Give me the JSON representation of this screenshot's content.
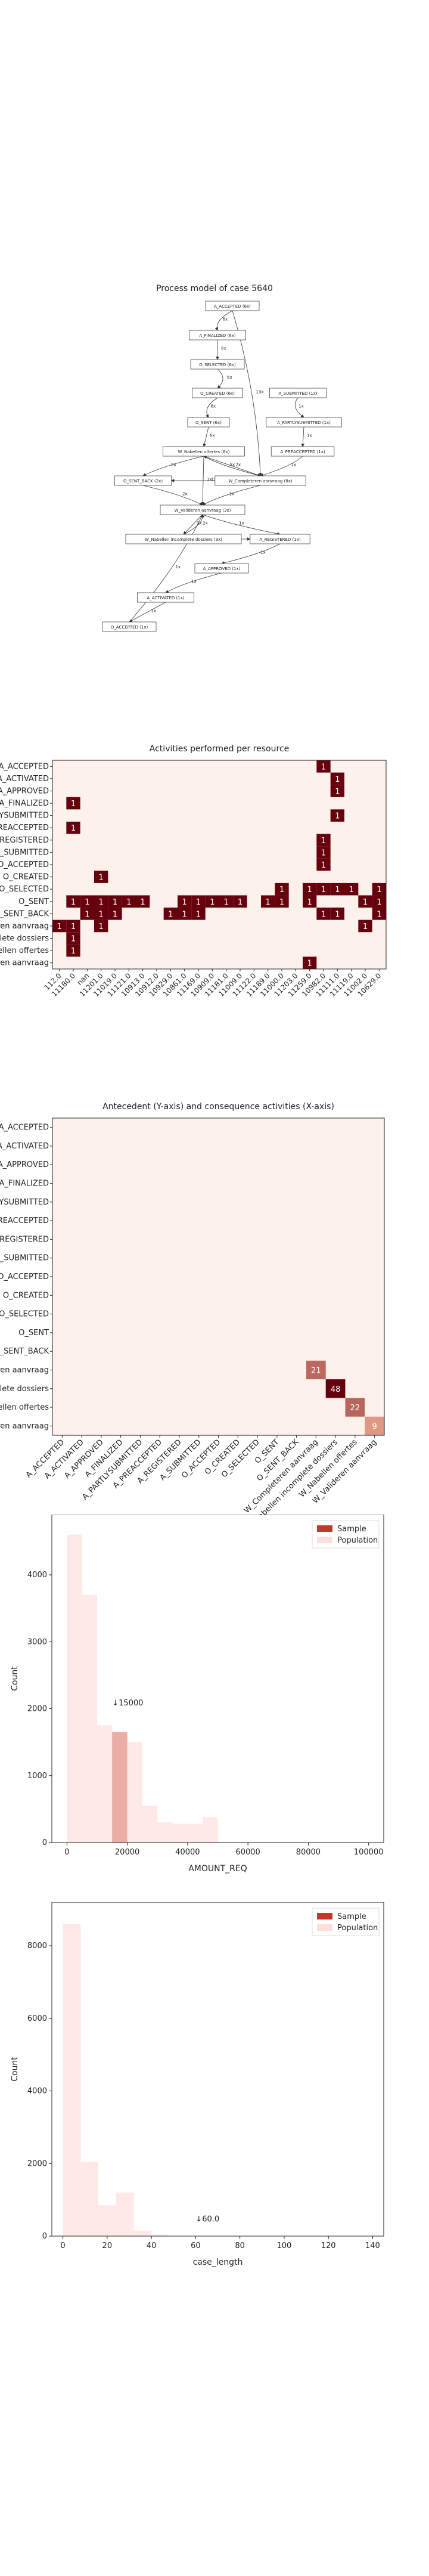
{
  "process_model": {
    "title": "Process model of case 5640",
    "nodes": [
      {
        "id": "accepted_top",
        "label": "A_ACCEPTED (6x)"
      },
      {
        "id": "finalized",
        "label": "A_FINALIZED (6x)"
      },
      {
        "id": "o_selected",
        "label": "O_SELECTED (6x)"
      },
      {
        "id": "o_created",
        "label": "O_CREATED (6x)"
      },
      {
        "id": "o_sent",
        "label": "O_SENT (6x)"
      },
      {
        "id": "a_submitted",
        "label": "A_SUBMITTED (1x)"
      },
      {
        "id": "a_partly",
        "label": "A_PARTLYSUBMITTED (1x)"
      },
      {
        "id": "a_preaccepted",
        "label": "A_PREACCEPTED (1x)"
      },
      {
        "id": "w_nabellen_offertes",
        "label": "W_Nabellen offertes (6x)"
      },
      {
        "id": "w_completeren",
        "label": "W_Completeren aanvraag (8x)"
      },
      {
        "id": "o_sent_back",
        "label": "O_SENT_BACK (2x)"
      },
      {
        "id": "w_valideren",
        "label": "W_Valideren aanvraag (3x)"
      },
      {
        "id": "w_nabellen_incompleet",
        "label": "W_Nabellen incomplete dossiers (3x)"
      },
      {
        "id": "a_registered",
        "label": "A_REGISTERED (1x)"
      },
      {
        "id": "a_approved",
        "label": "A_APPROVED (1x)"
      },
      {
        "id": "a_activated",
        "label": "A_ACTIVATED (1x)"
      },
      {
        "id": "o_accepted",
        "label": "O_ACCEPTED (1x)"
      }
    ],
    "edges": [
      {
        "from": "accepted_top",
        "to": "finalized",
        "label": "6x"
      },
      {
        "from": "finalized",
        "to": "o_selected",
        "label": "6x"
      },
      {
        "from": "o_selected",
        "to": "o_created",
        "label": "6x"
      },
      {
        "from": "o_created",
        "to": "o_sent",
        "label": "6x"
      },
      {
        "from": "o_sent",
        "to": "w_nabellen_offertes",
        "label": "6x"
      },
      {
        "from": "accepted_top",
        "to": "w_completeren",
        "label": "13x"
      },
      {
        "from": "a_submitted",
        "to": "a_partly",
        "label": "1x"
      },
      {
        "from": "a_partly",
        "to": "a_preaccepted",
        "label": "1x"
      },
      {
        "from": "a_preaccepted",
        "to": "w_completeren",
        "label": "1x"
      },
      {
        "from": "w_nabellen_offertes",
        "to": "w_completeren",
        "label": "5x"
      },
      {
        "from": "w_completeren",
        "to": "w_nabellen_offertes",
        "label": "2x"
      },
      {
        "from": "w_completeren",
        "to": "o_sent_back",
        "label": "1x"
      },
      {
        "from": "w_nabellen_offertes",
        "to": "o_sent_back",
        "label": "2x"
      },
      {
        "from": "w_nabellen_offertes",
        "to": "w_valideren",
        "label": "1x"
      },
      {
        "from": "o_sent_back",
        "to": "w_valideren",
        "label": "2x"
      },
      {
        "from": "w_completeren",
        "to": "w_valideren",
        "label": "1x"
      },
      {
        "from": "w_valideren",
        "to": "w_nabellen_incompleet",
        "label": "3x"
      },
      {
        "from": "w_nabellen_incompleet",
        "to": "w_valideren",
        "label": "2x"
      },
      {
        "from": "w_valideren",
        "to": "a_registered",
        "label": "1x"
      },
      {
        "from": "w_nabellen_incompleet",
        "to": "a_registered",
        "label": "1x"
      },
      {
        "from": "a_registered",
        "to": "a_approved",
        "label": "1x"
      },
      {
        "from": "a_approved",
        "to": "a_activated",
        "label": "1x"
      },
      {
        "from": "a_activated",
        "to": "o_accepted",
        "label": "1x"
      },
      {
        "from": "o_accepted",
        "to": "w_valideren",
        "label": "1x"
      }
    ]
  },
  "chart_data": [
    {
      "type": "heatmap",
      "title": "Activities performed per resource",
      "rows": [
        "A_ACCEPTED",
        "A_ACTIVATED",
        "A_APPROVED",
        "A_FINALIZED",
        "A_PARTLYSUBMITTED",
        "A_PREACCEPTED",
        "A_REGISTERED",
        "A_SUBMITTED",
        "O_ACCEPTED",
        "O_CREATED",
        "O_SELECTED",
        "O_SENT",
        "O_SENT_BACK",
        "W_Completeren aanvraag",
        "W_Nabellen incomplete dossiers",
        "W_Nabellen offertes",
        "W_Valideren aanvraag"
      ],
      "columns": [
        "112.0",
        "11180.0",
        "nan",
        "11201.0",
        "11019.0",
        "11121.0",
        "10913.0",
        "10912.0",
        "10929.0",
        "10861.0",
        "11169.0",
        "10909.0",
        "11181.0",
        "11009.0",
        "11122.0",
        "11189.0",
        "11000.0",
        "11203.0",
        "11259.0",
        "10982.0",
        "11111.0",
        "11119.0",
        "11002.0",
        "10629.0"
      ],
      "values": [
        [
          0,
          0,
          0,
          0,
          0,
          0,
          0,
          0,
          0,
          0,
          0,
          0,
          0,
          0,
          0,
          0,
          0,
          0,
          0,
          1,
          0,
          0,
          0,
          0
        ],
        [
          0,
          0,
          0,
          0,
          0,
          0,
          0,
          0,
          0,
          0,
          0,
          0,
          0,
          0,
          0,
          0,
          0,
          0,
          0,
          0,
          1,
          0,
          0,
          0
        ],
        [
          0,
          0,
          0,
          0,
          0,
          0,
          0,
          0,
          0,
          0,
          0,
          0,
          0,
          0,
          0,
          0,
          0,
          0,
          0,
          0,
          1,
          0,
          0,
          0
        ],
        [
          0,
          1,
          0,
          0,
          0,
          0,
          0,
          0,
          0,
          0,
          0,
          0,
          0,
          0,
          0,
          0,
          0,
          0,
          0,
          0,
          0,
          0,
          0,
          0
        ],
        [
          0,
          0,
          0,
          0,
          0,
          0,
          0,
          0,
          0,
          0,
          0,
          0,
          0,
          0,
          0,
          0,
          0,
          0,
          0,
          0,
          1,
          0,
          0,
          0
        ],
        [
          0,
          1,
          0,
          0,
          0,
          0,
          0,
          0,
          0,
          0,
          0,
          0,
          0,
          0,
          0,
          0,
          0,
          0,
          0,
          0,
          0,
          0,
          0,
          0
        ],
        [
          0,
          0,
          0,
          0,
          0,
          0,
          0,
          0,
          0,
          0,
          0,
          0,
          0,
          0,
          0,
          0,
          0,
          0,
          0,
          1,
          0,
          0,
          0,
          0
        ],
        [
          0,
          0,
          0,
          0,
          0,
          0,
          0,
          0,
          0,
          0,
          0,
          0,
          0,
          0,
          0,
          0,
          0,
          0,
          0,
          1,
          0,
          0,
          0,
          0
        ],
        [
          0,
          0,
          0,
          0,
          0,
          0,
          0,
          0,
          0,
          0,
          0,
          0,
          0,
          0,
          0,
          0,
          0,
          0,
          0,
          1,
          0,
          0,
          0,
          0
        ],
        [
          0,
          0,
          0,
          1,
          0,
          0,
          0,
          0,
          0,
          0,
          0,
          0,
          0,
          0,
          0,
          0,
          0,
          0,
          0,
          0,
          0,
          0,
          0,
          0
        ],
        [
          0,
          0,
          0,
          0,
          0,
          0,
          0,
          0,
          0,
          0,
          0,
          0,
          0,
          0,
          0,
          0,
          1,
          0,
          1,
          1,
          1,
          1,
          0,
          1
        ],
        [
          0,
          1,
          1,
          1,
          1,
          1,
          1,
          0,
          0,
          1,
          1,
          1,
          1,
          1,
          0,
          1,
          1,
          0,
          1,
          0,
          0,
          0,
          1,
          1
        ],
        [
          0,
          0,
          1,
          1,
          1,
          0,
          0,
          0,
          1,
          1,
          1,
          0,
          0,
          0,
          0,
          0,
          0,
          0,
          0,
          1,
          1,
          0,
          0,
          1
        ],
        [
          1,
          1,
          0,
          1,
          0,
          0,
          0,
          0,
          0,
          0,
          0,
          0,
          0,
          0,
          0,
          0,
          0,
          0,
          0,
          0,
          0,
          0,
          1,
          0
        ],
        [
          0,
          1,
          0,
          0,
          0,
          0,
          0,
          0,
          0,
          0,
          0,
          0,
          0,
          0,
          0,
          0,
          0,
          0,
          0,
          0,
          0,
          0,
          0,
          0
        ],
        [
          0,
          1,
          0,
          0,
          0,
          0,
          0,
          0,
          0,
          0,
          0,
          0,
          0,
          0,
          0,
          0,
          0,
          0,
          0,
          0,
          0,
          0,
          0,
          0
        ],
        [
          0,
          0,
          0,
          0,
          0,
          0,
          0,
          0,
          0,
          0,
          0,
          0,
          0,
          0,
          0,
          0,
          0,
          0,
          1,
          0,
          0,
          0,
          0,
          0
        ]
      ],
      "row_label_overrides": {
        "4": "A_PARTLYSUBMITTED",
        "13": "W_Completeren aanvraag",
        "14": "W_Nabellen incomplete dossiers",
        "15": "W_Nabellen offertes",
        "16": "W_Valideren aanvraag"
      },
      "colors": {
        "low": "#fdf1ec",
        "high": "#67000d"
      }
    },
    {
      "type": "heatmap",
      "title": "Antecedent (Y-axis) and consequence activities (X-axis)",
      "labels": [
        "A_ACCEPTED",
        "A_ACTIVATED",
        "A_APPROVED",
        "A_FINALIZED",
        "A_PARTLYSUBMITTED",
        "A_PREACCEPTED",
        "A_REGISTERED",
        "A_SUBMITTED",
        "O_ACCEPTED",
        "O_CREATED",
        "O_SELECTED",
        "O_SENT",
        "O_SENT_BACK",
        "W_Completeren aanvraag",
        "W_Nabellen incomplete dossiers",
        "W_Nabellen offertes",
        "W_Valideren aanvraag"
      ],
      "annotated_cells": [
        {
          "row": 13,
          "col": 13,
          "value": 21
        },
        {
          "row": 14,
          "col": 14,
          "value": 48
        },
        {
          "row": 15,
          "col": 15,
          "value": 22
        },
        {
          "row": 16,
          "col": 16,
          "value": 9
        }
      ],
      "colors": {
        "low": "#fdf1ec",
        "high": "#67000d"
      }
    },
    {
      "type": "bar",
      "xlabel": "AMOUNT_REQ",
      "ylabel": "Count",
      "xlim": [
        -5000,
        105000
      ],
      "ylim": [
        0,
        4900
      ],
      "xticks": [
        "0",
        "20000",
        "40000",
        "60000",
        "80000",
        "100000"
      ],
      "yticks": [
        "0",
        "1000",
        "2000",
        "3000",
        "4000"
      ],
      "bin_width": 5000,
      "series": [
        {
          "name": "Sample",
          "bins": [
            [
              15000,
              20000,
              1650
            ]
          ],
          "color": "#c0392b"
        },
        {
          "name": "Population",
          "bins": [
            [
              0,
              5000,
              4600
            ],
            [
              5000,
              10000,
              3700
            ],
            [
              10000,
              15000,
              1750
            ],
            [
              15000,
              20000,
              1650
            ],
            [
              20000,
              25000,
              1500
            ],
            [
              25000,
              30000,
              550
            ],
            [
              30000,
              35000,
              300
            ],
            [
              35000,
              40000,
              280
            ],
            [
              40000,
              45000,
              280
            ],
            [
              45000,
              50000,
              380
            ]
          ],
          "color": "#fde0dc"
        }
      ],
      "annotation": {
        "text": "↓15000",
        "x": 15000,
        "y": 2050
      },
      "legend_position": "top-right"
    },
    {
      "type": "bar",
      "xlabel": "case_length",
      "ylabel": "Count",
      "xlim": [
        -5,
        145
      ],
      "ylim": [
        0,
        9200
      ],
      "xticks": [
        "0",
        "20",
        "40",
        "60",
        "80",
        "100",
        "120",
        "140"
      ],
      "yticks": [
        "0",
        "2000",
        "4000",
        "6000",
        "8000"
      ],
      "bin_width": 8,
      "series": [
        {
          "name": "Sample",
          "bins": [
            [
              56,
              64,
              0
            ]
          ],
          "color": "#c0392b"
        },
        {
          "name": "Population",
          "bins": [
            [
              0,
              8,
              8600
            ],
            [
              8,
              16,
              2050
            ],
            [
              16,
              24,
              850
            ],
            [
              24,
              32,
              1200
            ],
            [
              32,
              40,
              150
            ],
            [
              40,
              48,
              30
            ]
          ],
          "color": "#fde0dc"
        }
      ],
      "annotation": {
        "text": "↓60.0",
        "x": 60,
        "y": 400
      },
      "legend_position": "top-right"
    }
  ]
}
